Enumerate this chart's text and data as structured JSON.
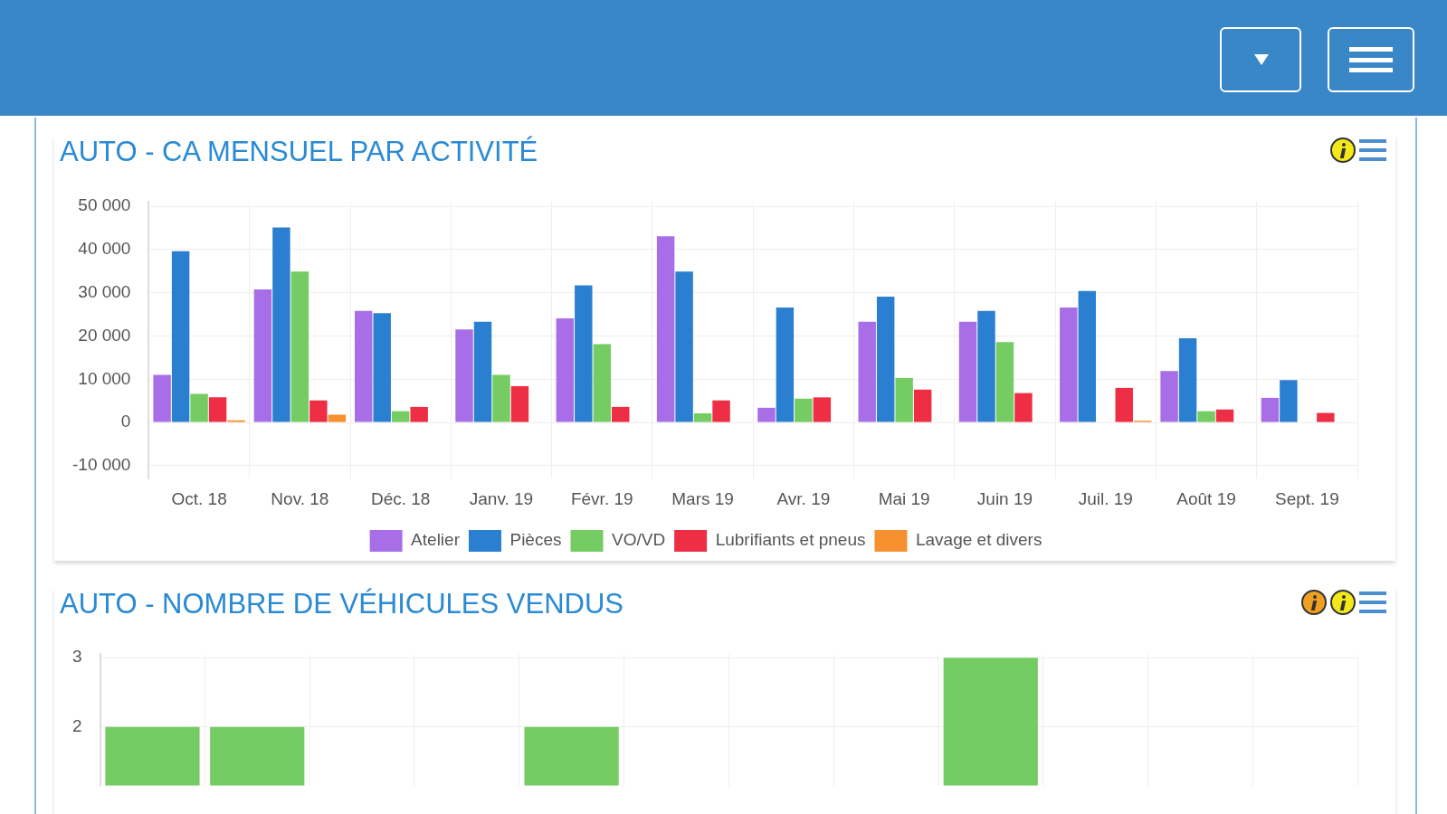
{
  "chart_data": [
    {
      "type": "bar",
      "title": "AUTO - CA MENSUEL PAR ACTIVITÉ",
      "categories": [
        "Oct. 18",
        "Nov. 18",
        "Déc. 18",
        "Janv. 19",
        "Févr. 19",
        "Mars 19",
        "Avr. 19",
        "Mai 19",
        "Juin 19",
        "Juil. 19",
        "Août 19",
        "Sept. 19"
      ],
      "series": [
        {
          "name": "Atelier",
          "color": "#a86ee8",
          "values": [
            11000,
            30800,
            25800,
            21500,
            24100,
            43100,
            3400,
            23300,
            23300,
            26600,
            11900,
            5700
          ]
        },
        {
          "name": "Pièces",
          "color": "#2a7fd0",
          "values": [
            39600,
            45100,
            25300,
            23300,
            31700,
            34900,
            26600,
            29100,
            25800,
            30400,
            19500,
            9800
          ]
        },
        {
          "name": "VO/VD",
          "color": "#74cc62",
          "values": [
            6600,
            34900,
            2600,
            11000,
            18100,
            2100,
            5500,
            10300,
            18600,
            null,
            2600,
            null
          ]
        },
        {
          "name": "Lubrifiants et pneus",
          "color": "#ee2e45",
          "values": [
            5800,
            5100,
            3600,
            8400,
            3600,
            5100,
            5800,
            7600,
            6800,
            8000,
            3000,
            2200
          ]
        },
        {
          "name": "Lavage et divers",
          "color": "#f7902e",
          "values": [
            500,
            1800,
            null,
            null,
            null,
            null,
            null,
            null,
            null,
            400,
            null,
            null
          ]
        }
      ],
      "ylim": [
        -13000,
        51000
      ],
      "yticks": [
        {
          "value": -10000,
          "label": "-10 000"
        },
        0,
        {
          "value": 10000,
          "label": "10 000"
        },
        {
          "value": 20000,
          "label": "20 000"
        },
        {
          "value": 30000,
          "label": "30 000"
        },
        {
          "value": 40000,
          "label": "40 000"
        },
        {
          "value": 50000,
          "label": "50 000"
        }
      ],
      "grid": true,
      "legend": "bottom"
    },
    {
      "type": "bar",
      "title": "AUTO - NOMBRE DE VÉHICULES VENDUS",
      "categories": [
        null,
        null,
        null,
        null,
        null,
        null,
        null,
        null,
        null,
        null,
        null,
        null
      ],
      "values": [
        2,
        2,
        null,
        null,
        2,
        null,
        null,
        null,
        3,
        null,
        null,
        null
      ],
      "color": "#74cc62",
      "ylim": [
        1.15,
        3.05
      ],
      "yticks": [
        2,
        3
      ],
      "grid": true,
      "tick_labels": "y"
    }
  ]
}
